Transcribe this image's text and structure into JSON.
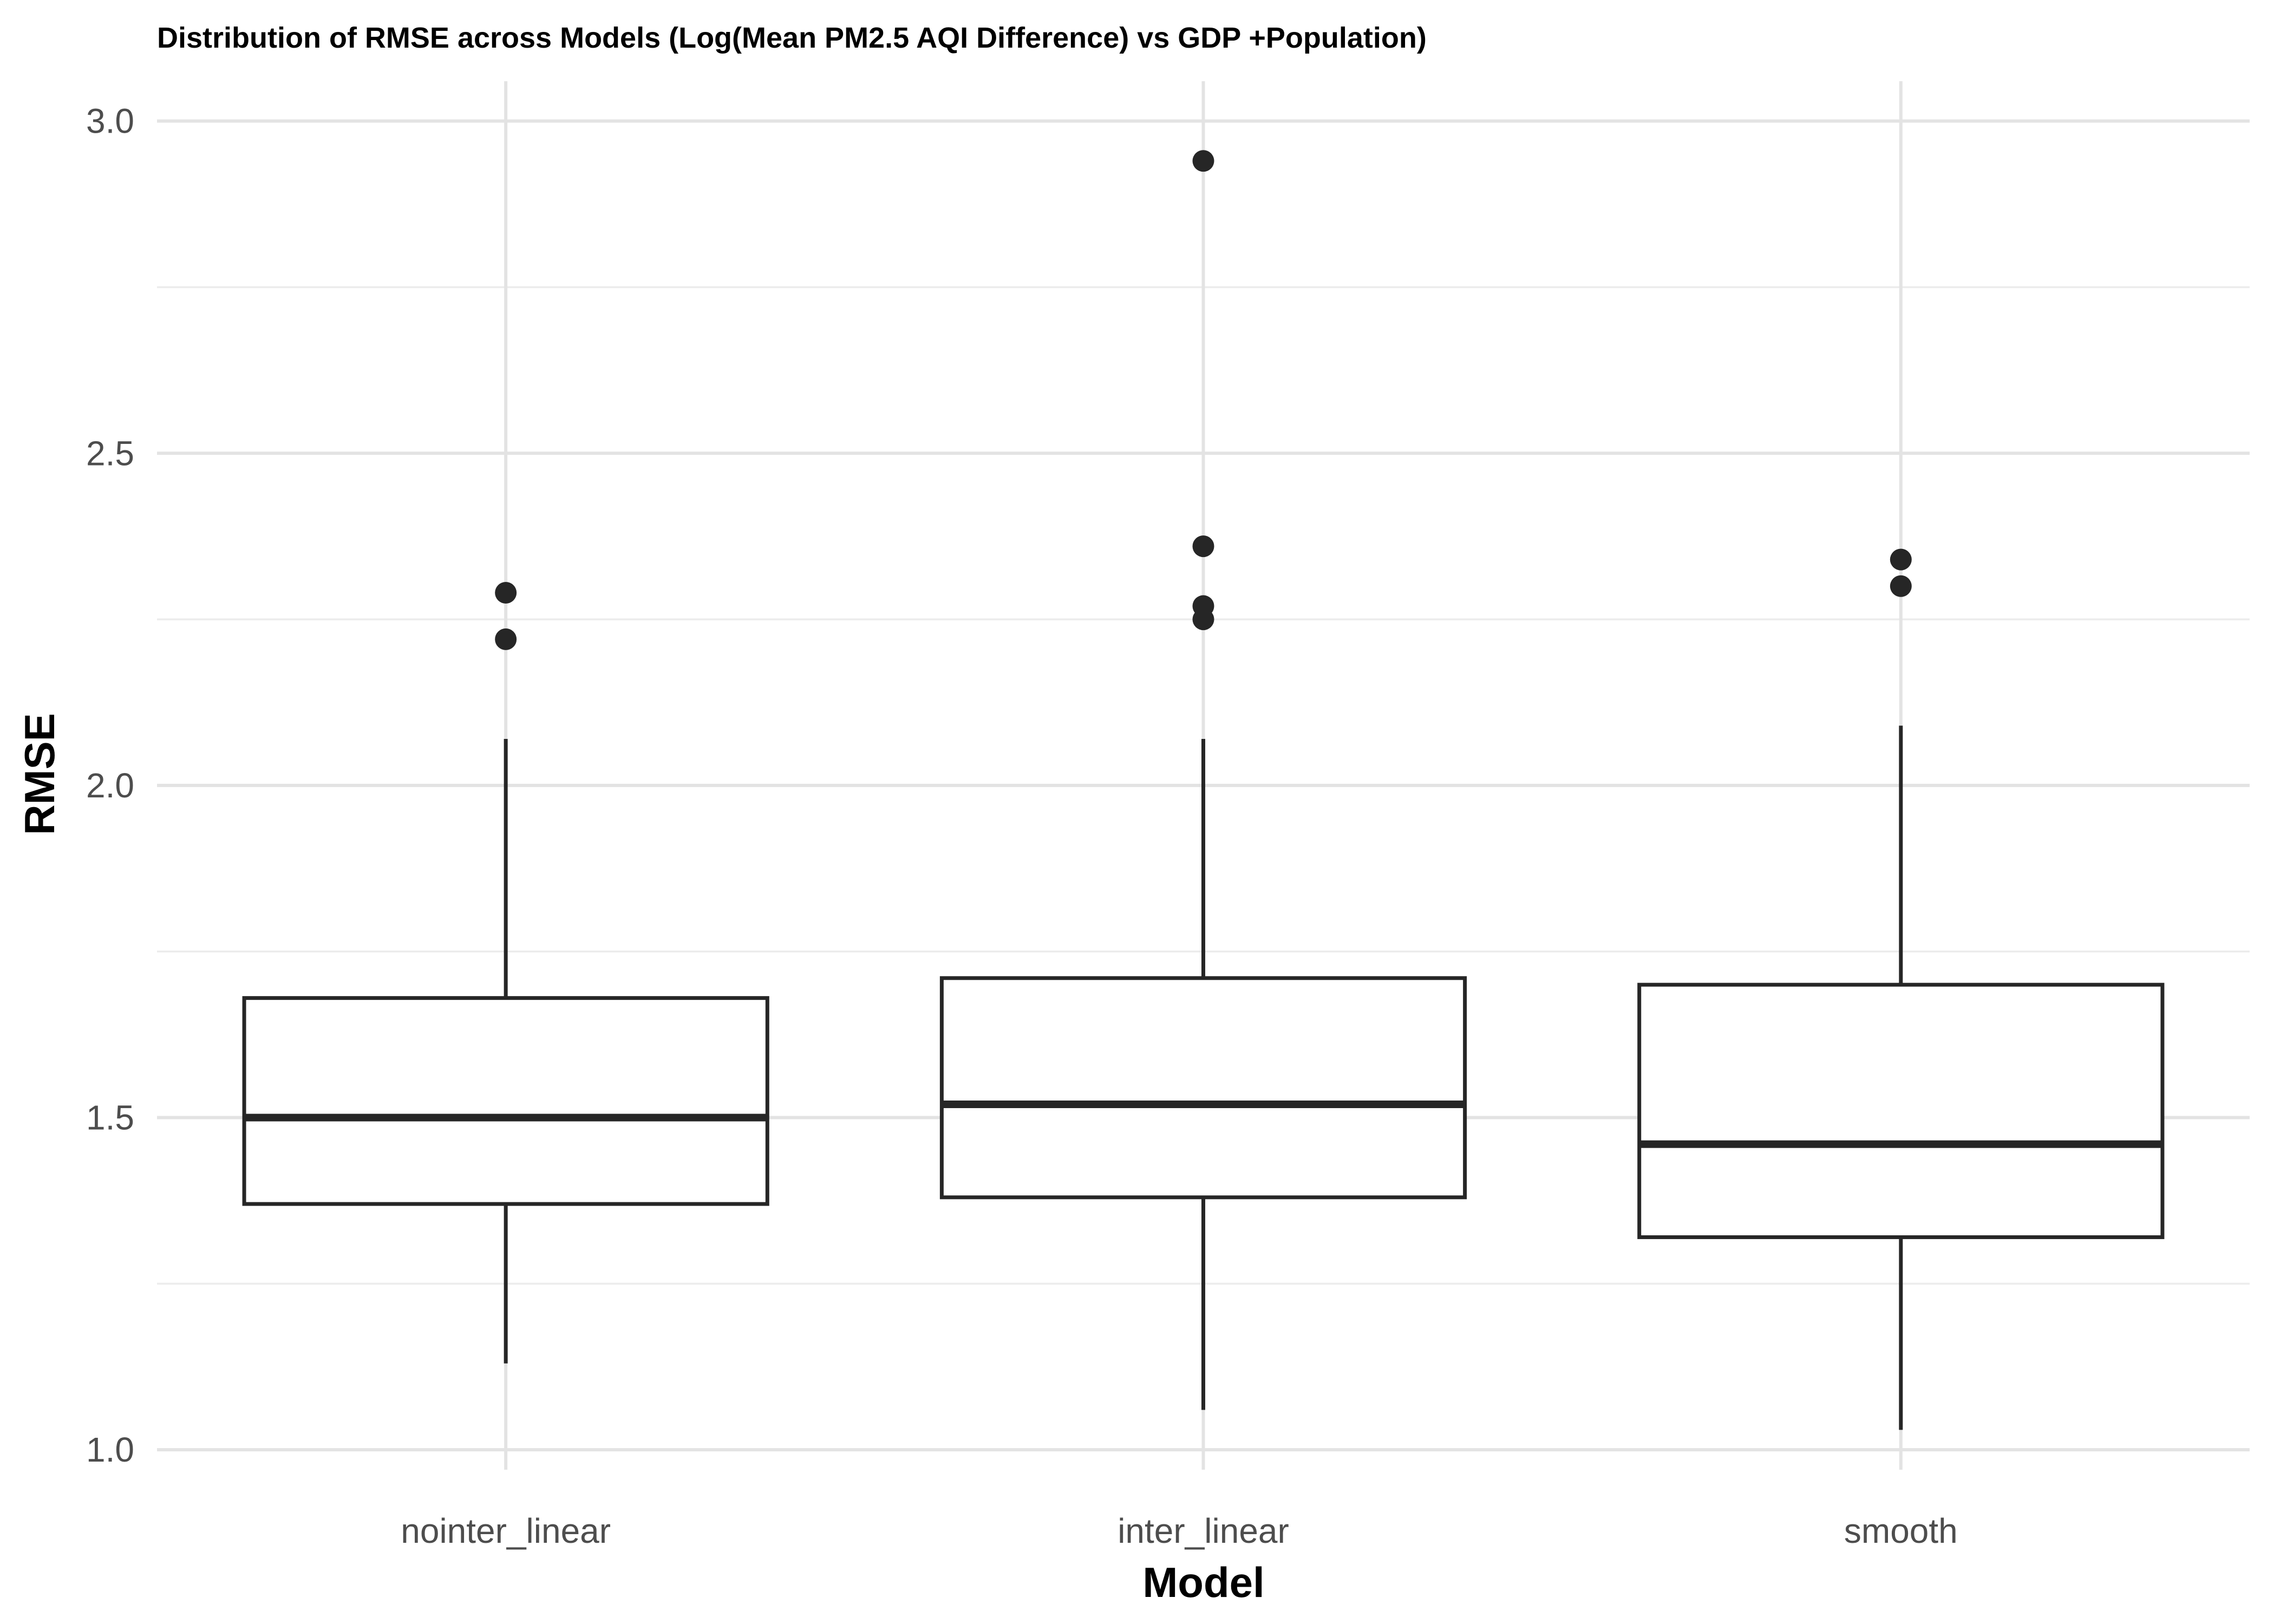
{
  "chart_data": {
    "type": "boxplot",
    "title": "Distribution of RMSE across Models (Log(Mean PM2.5 AQI Difference) vs GDP +Population)",
    "xlabel": "Model",
    "ylabel": "RMSE",
    "ylim": [
      0.97,
      3.06
    ],
    "yticks": [
      1.0,
      1.5,
      2.0,
      2.5,
      3.0
    ],
    "ytick_labels": [
      "1.0",
      "1.5",
      "2.0",
      "2.5",
      "3.0"
    ],
    "y_minor_ticks": [
      1.25,
      1.75,
      2.25,
      2.75
    ],
    "grid": true,
    "legend": "none",
    "categories": [
      "nointer_linear",
      "inter_linear",
      "smooth"
    ],
    "boxes": [
      {
        "name": "nointer_linear",
        "whisker_low": 1.13,
        "q1": 1.37,
        "median": 1.5,
        "q3": 1.68,
        "whisker_high": 2.07,
        "outliers": [
          2.22,
          2.29
        ]
      },
      {
        "name": "inter_linear",
        "whisker_low": 1.06,
        "q1": 1.38,
        "median": 1.52,
        "q3": 1.71,
        "whisker_high": 2.07,
        "outliers": [
          2.25,
          2.27,
          2.36,
          2.94
        ]
      },
      {
        "name": "smooth",
        "whisker_low": 1.03,
        "q1": 1.32,
        "median": 1.46,
        "q3": 1.7,
        "whisker_high": 2.09,
        "outliers": [
          2.3,
          2.34
        ]
      }
    ],
    "colors": {
      "box_stroke": "#262626",
      "box_fill": "#ffffff",
      "grid": "#e3e3e3",
      "tick_text": "#4d4d4d"
    }
  }
}
